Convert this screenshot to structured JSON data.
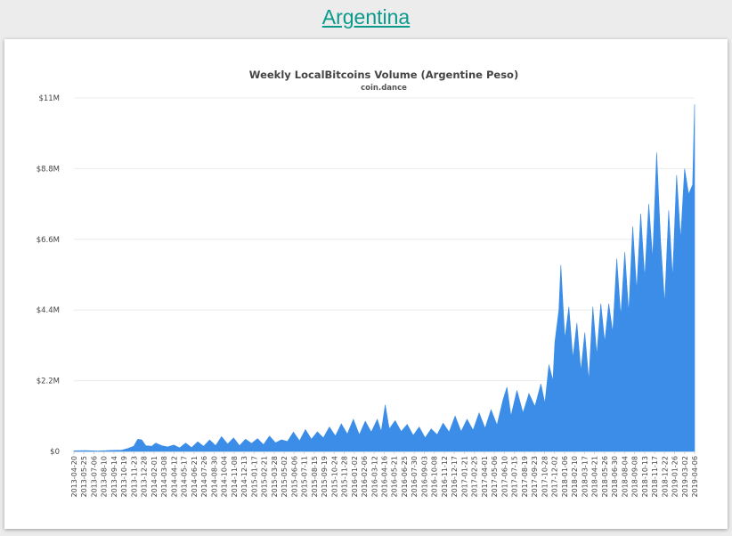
{
  "header": {
    "country_link": "Argentina"
  },
  "chart_data": {
    "type": "area",
    "title": "Weekly LocalBitcoins Volume (Argentine Peso)",
    "subtitle": "coin.dance",
    "ylim": [
      0,
      11000000
    ],
    "yticks": [
      {
        "value": 0,
        "label": "$0"
      },
      {
        "value": 2200000,
        "label": "$2.2M"
      },
      {
        "value": 4400000,
        "label": "$4.4M"
      },
      {
        "value": 6600000,
        "label": "$6.6M"
      },
      {
        "value": 8800000,
        "label": "$8.8M"
      },
      {
        "value": 11000000,
        "label": "$11M"
      }
    ],
    "grid": true,
    "series_color": "#3b8de8",
    "x_range": [
      "2013-04-20",
      "2019-04-06"
    ],
    "xtick_labels": [
      "2013-04-20",
      "2013-05-25",
      "2013-07-06",
      "2013-08-10",
      "2013-09-14",
      "2013-10-19",
      "2013-11-23",
      "2013-12-28",
      "2014-02-01",
      "2014-03-08",
      "2014-04-12",
      "2014-05-17",
      "2014-06-21",
      "2014-07-26",
      "2014-08-30",
      "2014-10-04",
      "2014-11-08",
      "2014-12-13",
      "2015-01-17",
      "2015-02-21",
      "2015-03-28",
      "2015-05-02",
      "2015-06-06",
      "2015-07-11",
      "2015-08-15",
      "2015-09-19",
      "2015-10-24",
      "2015-11-28",
      "2016-01-02",
      "2016-02-06",
      "2016-03-12",
      "2016-04-16",
      "2016-05-21",
      "2016-06-25",
      "2016-07-30",
      "2016-09-03",
      "2016-10-08",
      "2016-11-12",
      "2016-12-17",
      "2017-01-21",
      "2017-02-25",
      "2017-04-01",
      "2017-05-06",
      "2017-06-10",
      "2017-07-15",
      "2017-08-19",
      "2017-09-23",
      "2017-10-28",
      "2017-12-02",
      "2018-01-06",
      "2018-02-10",
      "2018-03-17",
      "2018-04-21",
      "2018-05-26",
      "2018-06-30",
      "2018-08-04",
      "2018-09-08",
      "2018-10-13",
      "2018-11-17",
      "2018-12-22",
      "2019-01-26",
      "2019-03-02",
      "2019-04-06"
    ],
    "points": [
      [
        "2013-04-20",
        20000
      ],
      [
        "2013-06-01",
        25000
      ],
      [
        "2013-07-13",
        15000
      ],
      [
        "2013-08-24",
        30000
      ],
      [
        "2013-10-05",
        40000
      ],
      [
        "2013-10-26",
        90000
      ],
      [
        "2013-11-16",
        160000
      ],
      [
        "2013-11-30",
        380000
      ],
      [
        "2013-12-14",
        360000
      ],
      [
        "2013-12-28",
        180000
      ],
      [
        "2014-01-18",
        160000
      ],
      [
        "2014-02-01",
        260000
      ],
      [
        "2014-02-22",
        180000
      ],
      [
        "2014-03-15",
        140000
      ],
      [
        "2014-04-05",
        200000
      ],
      [
        "2014-04-26",
        110000
      ],
      [
        "2014-05-17",
        260000
      ],
      [
        "2014-06-07",
        120000
      ],
      [
        "2014-06-28",
        300000
      ],
      [
        "2014-07-19",
        160000
      ],
      [
        "2014-08-09",
        360000
      ],
      [
        "2014-08-30",
        180000
      ],
      [
        "2014-09-20",
        460000
      ],
      [
        "2014-10-11",
        230000
      ],
      [
        "2014-11-01",
        420000
      ],
      [
        "2014-11-22",
        180000
      ],
      [
        "2014-12-13",
        380000
      ],
      [
        "2015-01-03",
        250000
      ],
      [
        "2015-01-24",
        400000
      ],
      [
        "2015-02-14",
        210000
      ],
      [
        "2015-03-07",
        480000
      ],
      [
        "2015-03-28",
        270000
      ],
      [
        "2015-04-18",
        360000
      ],
      [
        "2015-05-09",
        310000
      ],
      [
        "2015-05-30",
        600000
      ],
      [
        "2015-06-20",
        330000
      ],
      [
        "2015-07-11",
        680000
      ],
      [
        "2015-08-01",
        380000
      ],
      [
        "2015-08-22",
        610000
      ],
      [
        "2015-09-12",
        420000
      ],
      [
        "2015-10-03",
        760000
      ],
      [
        "2015-10-24",
        480000
      ],
      [
        "2015-11-14",
        860000
      ],
      [
        "2015-12-05",
        540000
      ],
      [
        "2015-12-26",
        1000000
      ],
      [
        "2016-01-16",
        520000
      ],
      [
        "2016-02-06",
        940000
      ],
      [
        "2016-02-27",
        600000
      ],
      [
        "2016-03-19",
        1000000
      ],
      [
        "2016-04-02",
        620000
      ],
      [
        "2016-04-16",
        1450000
      ],
      [
        "2016-04-30",
        700000
      ],
      [
        "2016-05-21",
        960000
      ],
      [
        "2016-06-11",
        620000
      ],
      [
        "2016-07-02",
        840000
      ],
      [
        "2016-07-23",
        500000
      ],
      [
        "2016-08-13",
        760000
      ],
      [
        "2016-09-03",
        420000
      ],
      [
        "2016-09-24",
        700000
      ],
      [
        "2016-10-15",
        520000
      ],
      [
        "2016-11-05",
        880000
      ],
      [
        "2016-11-26",
        600000
      ],
      [
        "2016-12-17",
        1100000
      ],
      [
        "2017-01-07",
        620000
      ],
      [
        "2017-01-28",
        1000000
      ],
      [
        "2017-02-18",
        660000
      ],
      [
        "2017-03-11",
        1200000
      ],
      [
        "2017-04-01",
        720000
      ],
      [
        "2017-04-22",
        1300000
      ],
      [
        "2017-05-13",
        820000
      ],
      [
        "2017-06-03",
        1600000
      ],
      [
        "2017-06-17",
        2000000
      ],
      [
        "2017-07-01",
        1100000
      ],
      [
        "2017-07-22",
        1900000
      ],
      [
        "2017-08-12",
        1200000
      ],
      [
        "2017-09-02",
        1800000
      ],
      [
        "2017-09-23",
        1400000
      ],
      [
        "2017-10-14",
        2100000
      ],
      [
        "2017-10-28",
        1500000
      ],
      [
        "2017-11-11",
        2700000
      ],
      [
        "2017-11-25",
        2200000
      ],
      [
        "2017-12-02",
        3400000
      ],
      [
        "2017-12-16",
        4400000
      ],
      [
        "2017-12-23",
        5800000
      ],
      [
        "2018-01-06",
        3500000
      ],
      [
        "2018-01-20",
        4500000
      ],
      [
        "2018-02-03",
        2900000
      ],
      [
        "2018-02-17",
        4000000
      ],
      [
        "2018-03-03",
        2500000
      ],
      [
        "2018-03-17",
        3700000
      ],
      [
        "2018-03-31",
        2200000
      ],
      [
        "2018-04-14",
        4500000
      ],
      [
        "2018-04-28",
        3000000
      ],
      [
        "2018-05-12",
        4600000
      ],
      [
        "2018-05-26",
        3400000
      ],
      [
        "2018-06-09",
        4600000
      ],
      [
        "2018-06-23",
        3700000
      ],
      [
        "2018-07-07",
        6000000
      ],
      [
        "2018-07-21",
        4200000
      ],
      [
        "2018-08-04",
        6200000
      ],
      [
        "2018-08-18",
        4300000
      ],
      [
        "2018-09-01",
        7000000
      ],
      [
        "2018-09-15",
        5000000
      ],
      [
        "2018-09-29",
        7400000
      ],
      [
        "2018-10-13",
        5400000
      ],
      [
        "2018-10-27",
        7700000
      ],
      [
        "2018-11-10",
        6000000
      ],
      [
        "2018-11-24",
        9300000
      ],
      [
        "2018-12-08",
        6500000
      ],
      [
        "2018-12-22",
        4600000
      ],
      [
        "2019-01-05",
        7500000
      ],
      [
        "2019-01-19",
        5400000
      ],
      [
        "2019-02-02",
        8600000
      ],
      [
        "2019-02-16",
        6600000
      ],
      [
        "2019-03-02",
        8800000
      ],
      [
        "2019-03-16",
        8000000
      ],
      [
        "2019-03-30",
        8300000
      ],
      [
        "2019-04-06",
        10800000
      ]
    ]
  }
}
